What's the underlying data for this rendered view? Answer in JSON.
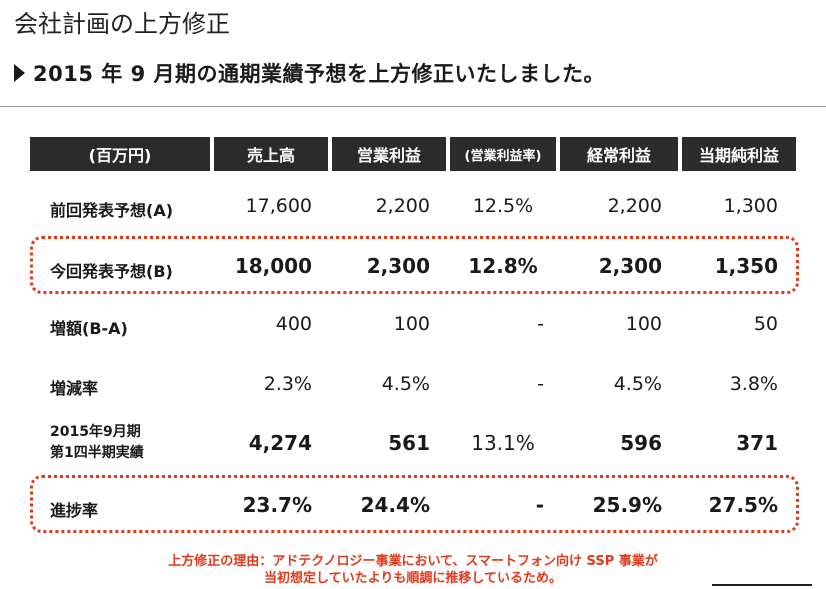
{
  "title": "会社計画の上方修正",
  "headline": "2015 年 9 月期の通期業績予想を上方修正いたしました。",
  "table": {
    "headers": [
      "(百万円)",
      "売上高",
      "営業利益",
      "(営業利益率)",
      "経常利益",
      "当期純利益"
    ],
    "rows": [
      {
        "label": "前回発表予想(A)",
        "values": [
          "17,600",
          "2,200",
          "12.5%",
          "2,200",
          "1,300"
        ]
      },
      {
        "label": "今回発表予想(B)",
        "values": [
          "18,000",
          "2,300",
          "12.8%",
          "2,300",
          "1,350"
        ]
      },
      {
        "label": "増額(B-A)",
        "values": [
          "400",
          "100",
          "-",
          "100",
          "50"
        ]
      },
      {
        "label": "増減率",
        "values": [
          "2.3%",
          "4.5%",
          "-",
          "4.5%",
          "3.8%"
        ]
      },
      {
        "label_line1": "2015年9月期",
        "label_line2": "第1四半期実績",
        "values": [
          "4,274",
          "561",
          "13.1%",
          "596",
          "371"
        ]
      },
      {
        "label": "進捗率",
        "values": [
          "23.7%",
          "24.4%",
          "-",
          "25.9%",
          "27.5%"
        ]
      }
    ]
  },
  "note": {
    "line1": "上方修正の理由：アドテクノロジー事業において、スマートフォン向け SSP 事業が",
    "line2": "当初想定していたよりも順調に推移しているため。"
  },
  "colors": {
    "header_bg": "#2b2b2b",
    "accent": "#e0391b"
  }
}
